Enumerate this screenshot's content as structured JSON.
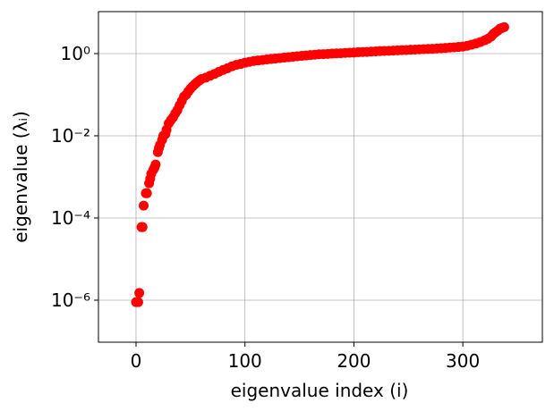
{
  "chart_data": {
    "type": "scatter",
    "xlabel": "eigenvalue index (i)",
    "ylabel": "eigenvalue (λᵢ)",
    "color": "#ff0000",
    "grid": true,
    "ylog": true,
    "xlim": [
      -34.5,
      373
    ],
    "ylim": [
      9.5e-08,
      10.5
    ],
    "xticks": [
      0,
      100,
      200,
      300
    ],
    "yticks": [
      {
        "value": 1e-06,
        "label": "10⁻⁶"
      },
      {
        "value": 0.0001,
        "label": "10⁻⁴"
      },
      {
        "value": 0.01,
        "label": "10⁻²"
      },
      {
        "value": 1,
        "label": "10⁰"
      }
    ],
    "x": [
      0,
      1,
      2,
      3,
      5,
      6,
      7,
      9,
      10,
      12,
      13,
      14,
      16,
      17,
      18,
      20,
      21,
      22,
      24,
      25,
      27,
      28,
      30,
      32,
      34,
      36,
      38,
      40,
      42,
      44,
      46,
      48,
      50,
      52,
      54,
      56,
      58,
      60,
      64,
      68,
      72,
      76,
      80,
      84,
      88,
      92,
      96,
      100,
      104,
      108,
      112,
      116,
      120,
      124,
      128,
      132,
      136,
      140,
      144,
      148,
      152,
      156,
      160,
      164,
      168,
      172,
      176,
      180,
      184,
      188,
      192,
      196,
      200,
      204,
      208,
      212,
      216,
      220,
      224,
      228,
      232,
      236,
      240,
      244,
      248,
      252,
      256,
      260,
      264,
      268,
      272,
      276,
      280,
      284,
      288,
      292,
      296,
      300,
      304,
      308,
      312,
      316,
      320,
      323,
      326,
      328,
      330,
      332,
      334,
      336,
      338
    ],
    "values": [
      9e-07,
      9e-07,
      9e-07,
      1.5e-06,
      6e-05,
      6e-05,
      0.0002,
      0.0004,
      0.0004,
      0.0007,
      0.0009,
      0.0012,
      0.0015,
      0.0017,
      0.002,
      0.004,
      0.005,
      0.006,
      0.008,
      0.01,
      0.011,
      0.014,
      0.02,
      0.024,
      0.028,
      0.035,
      0.042,
      0.055,
      0.07,
      0.09,
      0.1,
      0.12,
      0.14,
      0.16,
      0.18,
      0.2,
      0.22,
      0.24,
      0.26,
      0.29,
      0.32,
      0.36,
      0.4,
      0.44,
      0.49,
      0.53,
      0.56,
      0.6,
      0.63,
      0.66,
      0.68,
      0.7,
      0.72,
      0.74,
      0.76,
      0.78,
      0.8,
      0.82,
      0.84,
      0.86,
      0.88,
      0.9,
      0.92,
      0.94,
      0.96,
      0.97,
      0.98,
      1.0,
      1.01,
      1.02,
      1.04,
      1.05,
      1.06,
      1.08,
      1.09,
      1.1,
      1.12,
      1.13,
      1.15,
      1.16,
      1.17,
      1.18,
      1.2,
      1.21,
      1.22,
      1.24,
      1.25,
      1.27,
      1.28,
      1.3,
      1.31,
      1.33,
      1.35,
      1.37,
      1.4,
      1.42,
      1.45,
      1.48,
      1.55,
      1.65,
      1.75,
      1.9,
      2.1,
      2.3,
      2.6,
      3.0,
      3.3,
      3.6,
      4.0,
      4.2,
      4.4
    ]
  }
}
